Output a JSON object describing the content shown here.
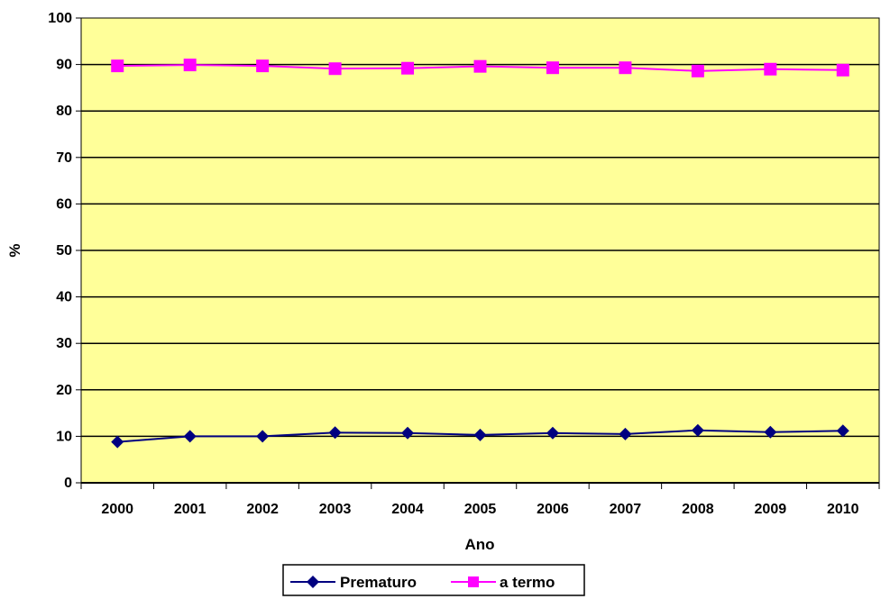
{
  "chart_data": {
    "type": "line",
    "title": "",
    "xlabel": "Ano",
    "ylabel": "%",
    "x": [
      "2000",
      "2001",
      "2002",
      "2003",
      "2004",
      "2005",
      "2006",
      "2007",
      "2008",
      "2009",
      "2010"
    ],
    "ylim": [
      0,
      100
    ],
    "yticks": [
      "0",
      "10",
      "20",
      "30",
      "40",
      "50",
      "60",
      "70",
      "80",
      "90",
      "100"
    ],
    "grid": "horizontal",
    "legend_position": "bottom",
    "plot_background": "#FFFF99",
    "series": [
      {
        "name": "Prematuro",
        "color": "#000080",
        "marker": "diamond",
        "values": [
          8.8,
          10.0,
          10.0,
          10.8,
          10.7,
          10.3,
          10.7,
          10.5,
          11.3,
          10.9,
          11.2
        ]
      },
      {
        "name": "a termo",
        "color": "#FF00FF",
        "marker": "square",
        "values": [
          89.7,
          89.9,
          89.7,
          89.1,
          89.2,
          89.6,
          89.3,
          89.3,
          88.6,
          89.0,
          88.8
        ]
      }
    ]
  }
}
